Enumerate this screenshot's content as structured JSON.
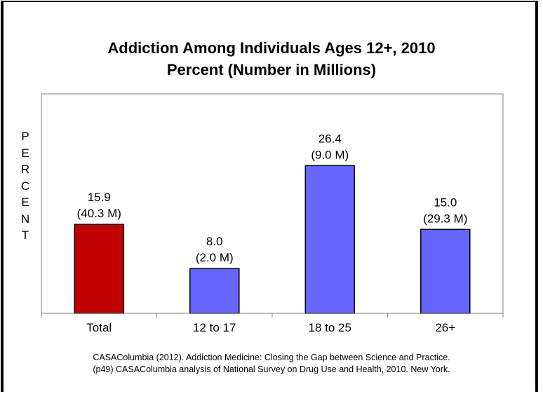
{
  "chart_data": {
    "type": "bar",
    "title": [
      "Addiction Among Individuals Ages 12+, 2010",
      "Percent (Number in Millions)"
    ],
    "ylabel": "PERCENT",
    "xlabel": "",
    "categories": [
      "Total",
      "12 to 17",
      "18 to 25",
      "26+"
    ],
    "values": [
      15.9,
      8.0,
      26.4,
      15.0
    ],
    "value_labels": [
      "15.9",
      "8.0",
      "26.4",
      "15.0"
    ],
    "count_labels": [
      "(40.3 M)",
      "(2.0 M)",
      "(9.0 M)",
      "(29.3 M)"
    ],
    "colors": [
      "#C00000",
      "#6666FF",
      "#6666FF",
      "#6666FF"
    ],
    "ylim": [
      0,
      40
    ],
    "grid": false,
    "legend": "none"
  },
  "source": [
    "CASAColumbia (2012). Addiction Medicine: Closing the Gap between Science and Practice.",
    "(p49) CASAColumbia analysis of National Survey on Drug Use and Health, 2010. New York."
  ]
}
